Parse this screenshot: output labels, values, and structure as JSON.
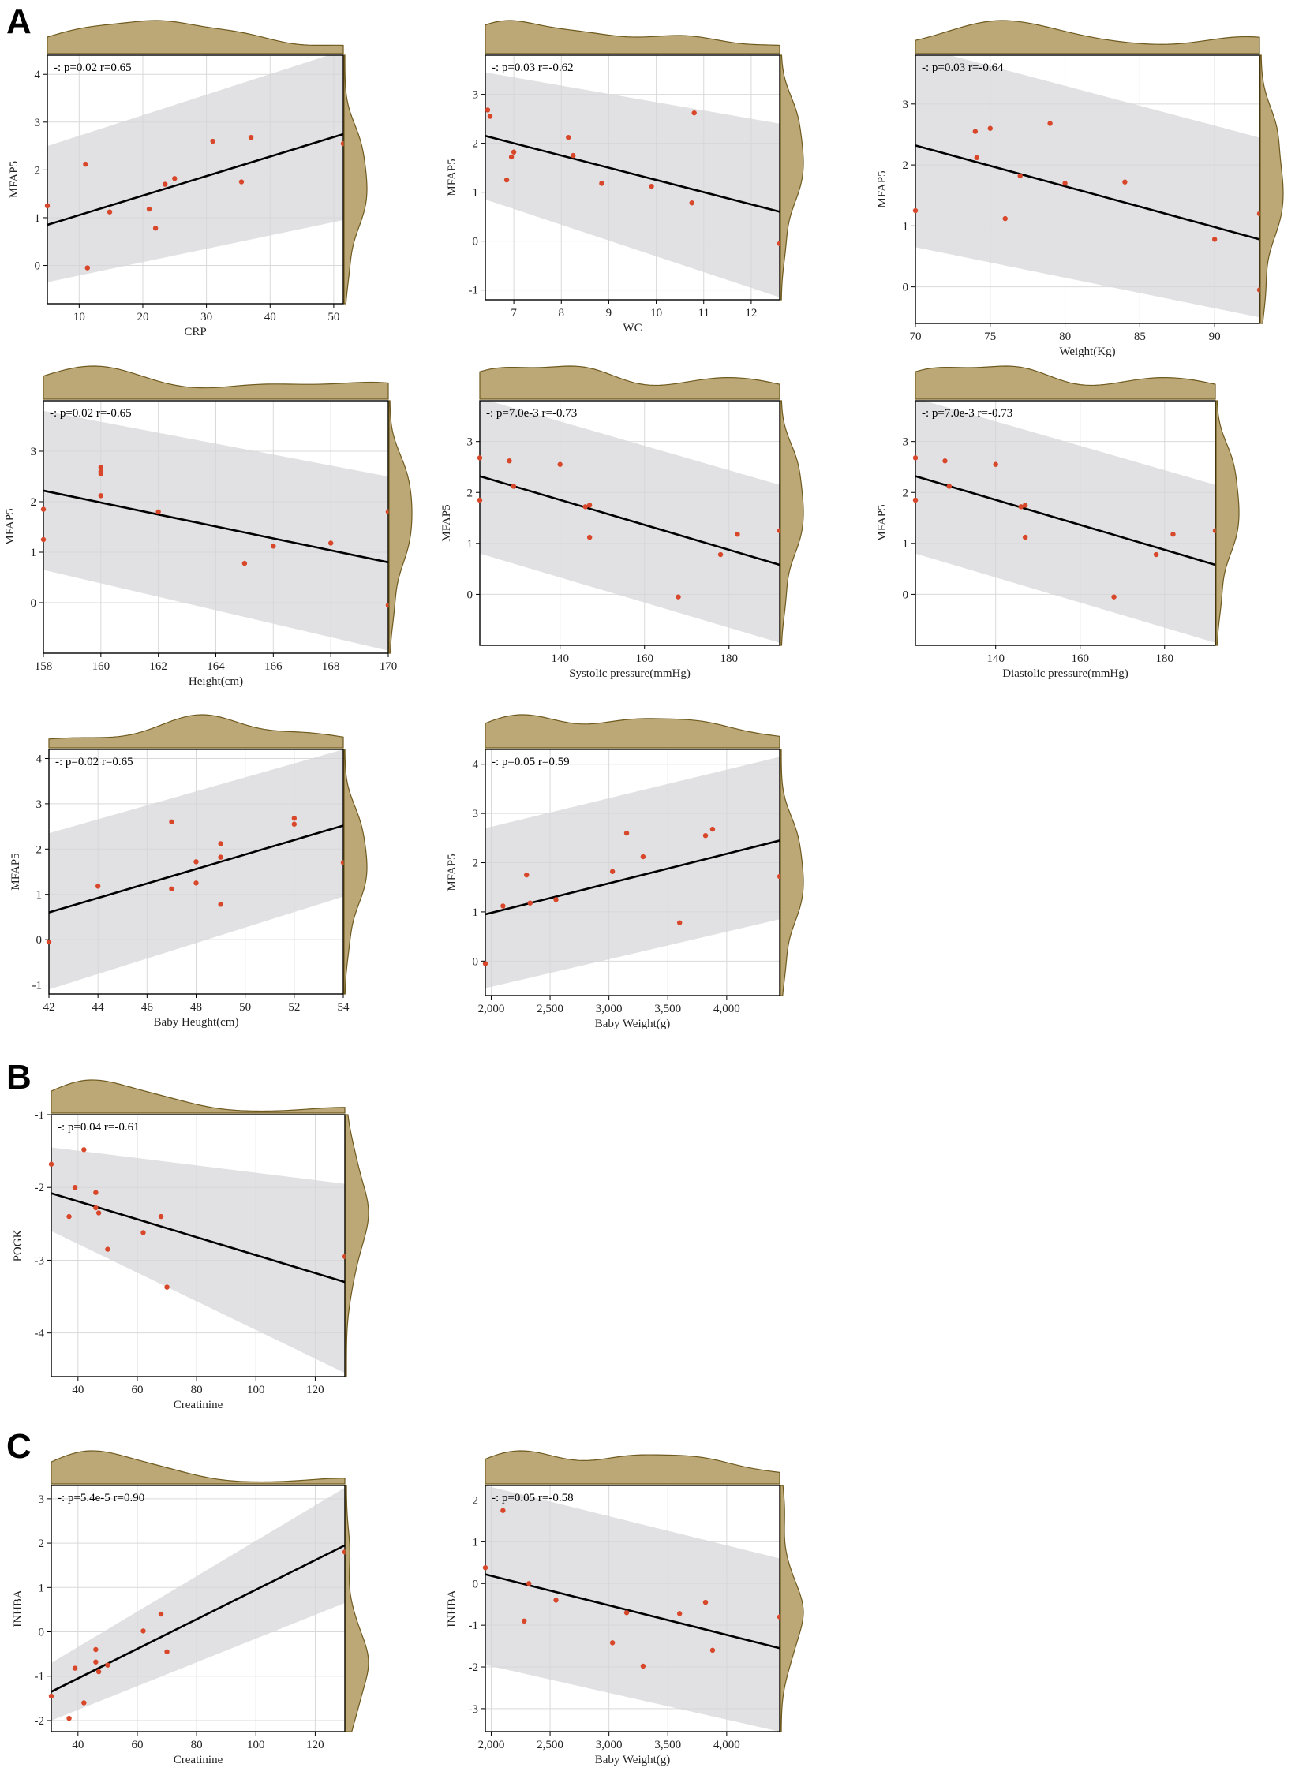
{
  "panel_letters": [
    "A",
    "B",
    "C"
  ],
  "chart_data": [
    {
      "type": "scatter",
      "group": "A",
      "stat_label": "-: p=0.02 r=0.65",
      "xlabel": "CRP",
      "ylabel": "MFAP5",
      "xlim": [
        5,
        51.5
      ],
      "ylim": [
        -0.8,
        4.4
      ],
      "xticks": [
        10,
        20,
        30,
        40,
        50
      ],
      "xtick_labels": [
        "10",
        "20",
        "30",
        "40",
        "50"
      ],
      "yticks": [
        0,
        1,
        2,
        3,
        4
      ],
      "ytick_labels": [
        "0",
        "1",
        "2",
        "3",
        "4"
      ],
      "fit": {
        "x": [
          5,
          51.5
        ],
        "y": [
          0.85,
          2.75
        ]
      },
      "band": {
        "x": [
          5,
          51.5
        ],
        "lower": [
          -0.35,
          0.95
        ],
        "upper": [
          2.5,
          4.5
        ]
      },
      "x": [
        5,
        11,
        11.3,
        14.8,
        21,
        22,
        23.5,
        25,
        31,
        35.5,
        37,
        51.5
      ],
      "y": [
        1.25,
        2.12,
        -0.05,
        1.12,
        1.18,
        0.78,
        1.7,
        1.82,
        2.6,
        1.75,
        2.68,
        2.55
      ]
    },
    {
      "type": "scatter",
      "group": "A",
      "stat_label": "-: p=0.03 r=-0.62",
      "xlabel": "WC",
      "ylabel": "MFAP5",
      "xlim": [
        6.4,
        12.6
      ],
      "ylim": [
        -1.2,
        3.8
      ],
      "xticks": [
        7,
        8,
        9,
        10,
        11,
        12
      ],
      "xtick_labels": [
        "7",
        "8",
        "9",
        "10",
        "11",
        "12"
      ],
      "yticks": [
        -1,
        0,
        1,
        2,
        3
      ],
      "ytick_labels": [
        "-1",
        "0",
        "1",
        "2",
        "3"
      ],
      "fit": {
        "x": [
          6.4,
          12.6
        ],
        "y": [
          2.15,
          0.6
        ]
      },
      "band": {
        "x": [
          6.4,
          12.6
        ],
        "lower": [
          0.85,
          -1.15
        ],
        "upper": [
          3.45,
          2.4
        ]
      },
      "x": [
        6.45,
        6.5,
        6.85,
        6.95,
        7.0,
        8.15,
        8.25,
        8.85,
        9.9,
        10.75,
        10.8,
        12.6
      ],
      "y": [
        2.68,
        2.55,
        1.25,
        1.72,
        1.82,
        2.12,
        1.75,
        1.18,
        1.12,
        0.78,
        2.62,
        -0.05
      ]
    },
    {
      "type": "scatter",
      "group": "A",
      "stat_label": "-: p=0.03 r=-0.64",
      "xlabel": "Weight(Kg)",
      "ylabel": "MFAP5",
      "xlim": [
        70,
        93
      ],
      "ylim": [
        -0.6,
        3.8
      ],
      "xticks": [
        70,
        75,
        80,
        85,
        90
      ],
      "xtick_labels": [
        "70",
        "75",
        "80",
        "85",
        "90"
      ],
      "yticks": [
        0,
        1,
        2,
        3
      ],
      "ytick_labels": [
        "0",
        "1",
        "2",
        "3"
      ],
      "fit": {
        "x": [
          70,
          93
        ],
        "y": [
          2.32,
          0.78
        ]
      },
      "band": {
        "x": [
          70,
          93
        ],
        "lower": [
          0.65,
          -0.5
        ],
        "upper": [
          3.95,
          2.45
        ]
      },
      "x": [
        70,
        74,
        74.1,
        75,
        76,
        77,
        79,
        80,
        84,
        90,
        93,
        93
      ],
      "y": [
        1.25,
        2.55,
        2.12,
        2.6,
        1.12,
        1.82,
        2.68,
        1.7,
        1.72,
        0.78,
        1.2,
        -0.05
      ]
    },
    {
      "type": "scatter",
      "group": "A",
      "stat_label": "-: p=0.02 r=-0.65",
      "xlabel": "Height(cm)",
      "ylabel": "MFAP5",
      "xlim": [
        158,
        170
      ],
      "ylim": [
        -1.0,
        4.0
      ],
      "xticks": [
        158,
        160,
        162,
        164,
        166,
        168,
        170
      ],
      "xtick_labels": [
        "158",
        "160",
        "162",
        "164",
        "166",
        "168",
        "170"
      ],
      "yticks": [
        0,
        1,
        2,
        3
      ],
      "ytick_labels": [
        "0",
        "1",
        "2",
        "3"
      ],
      "fit": {
        "x": [
          158,
          170
        ],
        "y": [
          2.22,
          0.8
        ]
      },
      "band": {
        "x": [
          158,
          170
        ],
        "lower": [
          0.65,
          -0.95
        ],
        "upper": [
          3.8,
          2.5
        ]
      },
      "x": [
        158,
        158,
        160,
        160,
        160,
        160,
        162,
        165,
        166,
        168,
        170,
        170
      ],
      "y": [
        1.85,
        1.25,
        2.68,
        2.6,
        2.55,
        2.12,
        1.8,
        0.78,
        1.12,
        1.18,
        1.8,
        -0.05
      ]
    },
    {
      "type": "scatter",
      "group": "A",
      "stat_label": "-: p=7.0e-3 r=-0.73",
      "xlabel": "Systolic pressure(mmHg)",
      "ylabel": "MFAP5",
      "xlim": [
        121,
        192
      ],
      "ylim": [
        -1.0,
        3.8
      ],
      "xticks": [
        140,
        160,
        180
      ],
      "xtick_labels": [
        "140",
        "160",
        "180"
      ],
      "yticks": [
        0,
        1,
        2,
        3
      ],
      "ytick_labels": [
        "0",
        "1",
        "2",
        "3"
      ],
      "fit": {
        "x": [
          121,
          192
        ],
        "y": [
          2.32,
          0.58
        ]
      },
      "band": {
        "x": [
          121,
          192
        ],
        "lower": [
          0.8,
          -0.95
        ],
        "upper": [
          3.85,
          2.15
        ]
      },
      "x": [
        121,
        121,
        128,
        129,
        140,
        146,
        147,
        147,
        168,
        178,
        182,
        192
      ],
      "y": [
        2.68,
        1.85,
        2.62,
        2.12,
        2.55,
        1.72,
        1.75,
        1.12,
        -0.05,
        0.78,
        1.18,
        1.25
      ],
      "x_range_note": "left edge unlabeled"
    },
    {
      "type": "scatter",
      "group": "A",
      "stat_label": "-: p=7.0e-3 r=-0.73",
      "xlabel": "Diastolic pressure(mmHg)",
      "ylabel": "MFAP5",
      "xlim": [
        121,
        192
      ],
      "ylim": [
        -1.0,
        3.8
      ],
      "xticks": [
        140,
        160,
        180
      ],
      "xtick_labels": [
        "140",
        "160",
        "180"
      ],
      "yticks": [
        0,
        1,
        2,
        3
      ],
      "ytick_labels": [
        "0",
        "1",
        "2",
        "3"
      ],
      "fit": {
        "x": [
          121,
          192
        ],
        "y": [
          2.32,
          0.58
        ]
      },
      "band": {
        "x": [
          121,
          192
        ],
        "lower": [
          0.8,
          -0.95
        ],
        "upper": [
          3.85,
          2.15
        ]
      },
      "x": [
        121,
        121,
        128,
        129,
        140,
        146,
        147,
        147,
        168,
        178,
        182,
        192
      ],
      "y": [
        2.68,
        1.85,
        2.62,
        2.12,
        2.55,
        1.72,
        1.75,
        1.12,
        -0.05,
        0.78,
        1.18,
        1.25
      ]
    },
    {
      "type": "scatter",
      "group": "A",
      "stat_label": "-: p=0.02 r=0.65",
      "xlabel": "Baby  Heught(cm)",
      "ylabel": "MFAP5",
      "xlim": [
        42,
        54
      ],
      "ylim": [
        -1.2,
        4.2
      ],
      "xticks": [
        42,
        44,
        46,
        48,
        50,
        52,
        54
      ],
      "xtick_labels": [
        "42",
        "44",
        "46",
        "48",
        "50",
        "52",
        "54"
      ],
      "yticks": [
        -1,
        0,
        1,
        2,
        3,
        4
      ],
      "ytick_labels": [
        "-1",
        "0",
        "1",
        "2",
        "3",
        "4"
      ],
      "fit": {
        "x": [
          42,
          54
        ],
        "y": [
          0.6,
          2.52
        ]
      },
      "band": {
        "x": [
          42,
          54
        ],
        "lower": [
          -1.1,
          0.95
        ],
        "upper": [
          2.35,
          4.2
        ]
      },
      "x": [
        42,
        44,
        47,
        47,
        48,
        48,
        49,
        49,
        49,
        52,
        52,
        54
      ],
      "y": [
        -0.05,
        1.18,
        2.6,
        1.12,
        1.72,
        1.25,
        2.12,
        1.82,
        0.78,
        2.68,
        2.55,
        1.7
      ]
    },
    {
      "type": "scatter",
      "group": "A",
      "stat_label": "-: p=0.05 r=0.59",
      "xlabel": "Baby  Weight(g)",
      "ylabel": "MFAP5",
      "xlim": [
        1950,
        4450
      ],
      "ylim": [
        -0.7,
        4.3
      ],
      "xticks": [
        2000,
        2500,
        3000,
        3500,
        4000
      ],
      "xtick_labels": [
        "2,000",
        "2,500",
        "3,000",
        "3,500",
        "4,000"
      ],
      "yticks": [
        0,
        1,
        2,
        3,
        4
      ],
      "ytick_labels": [
        "0",
        "1",
        "2",
        "3",
        "4"
      ],
      "fit": {
        "x": [
          1950,
          4450
        ],
        "y": [
          0.95,
          2.45
        ]
      },
      "band": {
        "x": [
          1950,
          4450
        ],
        "lower": [
          -0.55,
          0.85
        ],
        "upper": [
          2.7,
          4.15
        ]
      },
      "x": [
        1950,
        2100,
        2300,
        2330,
        2550,
        3030,
        3150,
        3290,
        3600,
        3820,
        3880,
        4450
      ],
      "y": [
        -0.05,
        1.12,
        1.75,
        1.18,
        1.25,
        1.82,
        2.6,
        2.12,
        0.78,
        2.55,
        2.68,
        1.72
      ]
    },
    {
      "type": "scatter",
      "group": "B",
      "stat_label": "-: p=0.04 r=-0.61",
      "xlabel": "Creatinine",
      "ylabel": "POGK",
      "xlim": [
        31,
        130
      ],
      "ylim": [
        -4.6,
        -1.0
      ],
      "xticks": [
        40,
        60,
        80,
        100,
        120
      ],
      "xtick_labels": [
        "40",
        "60",
        "80",
        "100",
        "120"
      ],
      "yticks": [
        -4,
        -3,
        -2,
        -1
      ],
      "ytick_labels": [
        "-4",
        "-3",
        "-2",
        "-1"
      ],
      "fit": {
        "x": [
          31,
          130
        ],
        "y": [
          -2.08,
          -3.3
        ]
      },
      "band": {
        "x": [
          31,
          130
        ],
        "lower": [
          -2.6,
          -4.55
        ],
        "upper": [
          -1.45,
          -1.95
        ]
      },
      "x": [
        31,
        37,
        39,
        42,
        46,
        46,
        47,
        50,
        62,
        68,
        70,
        130
      ],
      "y": [
        -1.68,
        -2.4,
        -2.0,
        -1.48,
        -2.07,
        -2.28,
        -2.35,
        -2.85,
        -2.62,
        -2.4,
        -3.37,
        -2.95
      ]
    },
    {
      "type": "scatter",
      "group": "C",
      "stat_label": "-: p=5.4e-5 r=0.90",
      "xlabel": "Creatinine",
      "ylabel": "INHBA",
      "xlim": [
        31,
        130
      ],
      "ylim": [
        -2.25,
        3.3
      ],
      "xticks": [
        40,
        60,
        80,
        100,
        120
      ],
      "xtick_labels": [
        "40",
        "60",
        "80",
        "100",
        "120"
      ],
      "yticks": [
        -2,
        -1,
        0,
        1,
        2,
        3
      ],
      "ytick_labels": [
        "-2",
        "-1",
        "0",
        "1",
        "2",
        "3"
      ],
      "fit": {
        "x": [
          31,
          130
        ],
        "y": [
          -1.35,
          1.95
        ]
      },
      "band": {
        "x": [
          31,
          130
        ],
        "lower": [
          -2.0,
          0.65
        ],
        "upper": [
          -0.7,
          3.25
        ]
      },
      "x": [
        31,
        37,
        39,
        42,
        46,
        46,
        47,
        50,
        62,
        68,
        70,
        130
      ],
      "y": [
        -1.45,
        -1.95,
        -0.82,
        -1.6,
        -0.4,
        -0.68,
        -0.9,
        -0.75,
        0.02,
        0.4,
        -0.45,
        1.8
      ]
    },
    {
      "type": "scatter",
      "group": "C",
      "stat_label": "-: p=0.05 r=-0.58",
      "xlabel": "Baby  Weight(g)",
      "ylabel": "INHBA",
      "xlim": [
        1950,
        4450
      ],
      "ylim": [
        -3.55,
        2.35
      ],
      "xticks": [
        2000,
        2500,
        3000,
        3500,
        4000
      ],
      "xtick_labels": [
        "2,000",
        "2,500",
        "3,000",
        "3,500",
        "4,000"
      ],
      "yticks": [
        -3,
        -2,
        -1,
        0,
        1,
        2
      ],
      "ytick_labels": [
        "-3",
        "-2",
        "-1",
        "0",
        "1",
        "2"
      ],
      "fit": {
        "x": [
          1950,
          4450
        ],
        "y": [
          0.22,
          -1.55
        ]
      },
      "band": {
        "x": [
          1950,
          4450
        ],
        "lower": [
          -1.95,
          -3.55
        ],
        "upper": [
          2.35,
          0.6
        ]
      },
      "x": [
        1950,
        2100,
        2280,
        2320,
        2550,
        3030,
        3150,
        3290,
        3600,
        3820,
        3880,
        4450
      ],
      "y": [
        0.38,
        1.75,
        -0.9,
        0.0,
        -0.4,
        -1.42,
        -0.7,
        -1.98,
        -0.72,
        -0.45,
        -1.6,
        -0.8
      ]
    }
  ]
}
